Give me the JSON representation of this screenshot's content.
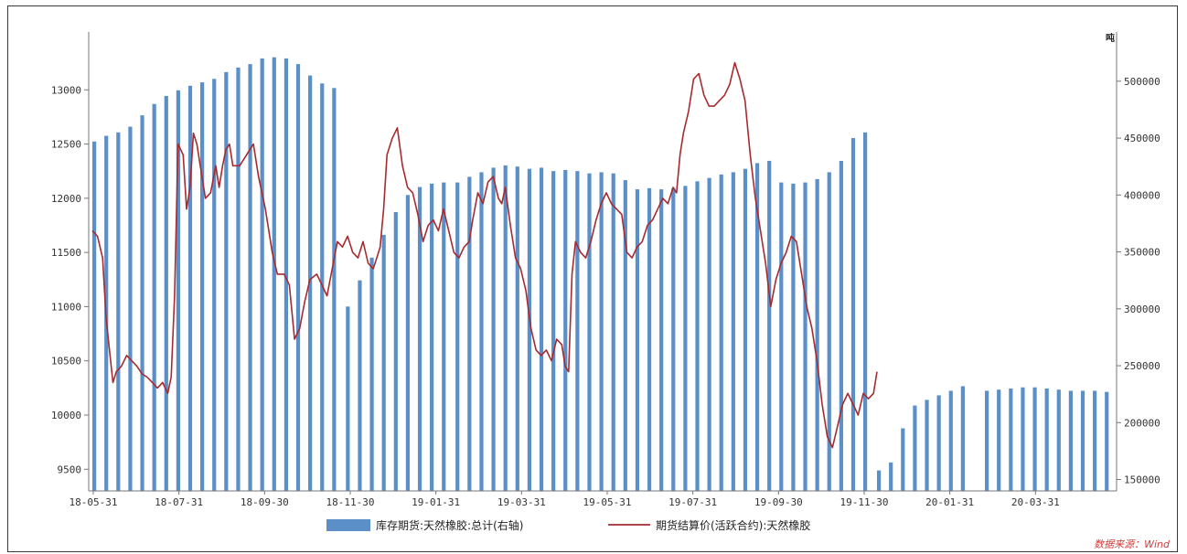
{
  "chart_data": {
    "type": "bar+line",
    "x_tick_labels": [
      "18-05-31",
      "18-07-31",
      "18-09-30",
      "18-11-30",
      "19-01-31",
      "19-03-31",
      "19-05-31",
      "19-07-31",
      "19-09-30",
      "19-11-30",
      "20-01-31",
      "20-03-31"
    ],
    "left_axis": {
      "ylim": [
        9300,
        13500
      ],
      "ticks": [
        9500,
        10000,
        10500,
        11000,
        11500,
        12000,
        12500,
        13000
      ]
    },
    "right_axis": {
      "unit": "吨",
      "ylim": [
        140000,
        540000
      ],
      "ticks": [
        150000,
        200000,
        250000,
        300000,
        350000,
        400000,
        450000,
        500000
      ]
    },
    "legend": {
      "placement": "bottom-center"
    },
    "series": [
      {
        "name": "库存期货:天然橡胶:总计(右轴)",
        "kind": "bar",
        "axis": "right",
        "color": "#5b8fc7",
        "points": [
          [
            0,
            447000
          ],
          [
            7,
            452000
          ],
          [
            14,
            455000
          ],
          [
            21,
            460000
          ],
          [
            28,
            470000
          ],
          [
            35,
            480000
          ],
          [
            42,
            487000
          ],
          [
            49,
            492000
          ],
          [
            56,
            496000
          ],
          [
            63,
            499000
          ],
          [
            70,
            502000
          ],
          [
            77,
            508000
          ],
          [
            84,
            512000
          ],
          [
            91,
            515000
          ],
          [
            98,
            520000
          ],
          [
            105,
            521000
          ],
          [
            112,
            520000
          ],
          [
            119,
            515000
          ],
          [
            126,
            505000
          ],
          [
            133,
            498000
          ],
          [
            140,
            494000
          ],
          [
            148,
            302000
          ],
          [
            155,
            325000
          ],
          [
            162,
            345000
          ],
          [
            169,
            365000
          ],
          [
            176,
            385000
          ],
          [
            183,
            400000
          ],
          [
            190,
            407000
          ],
          [
            197,
            410000
          ],
          [
            204,
            411000
          ],
          [
            212,
            411000
          ],
          [
            219,
            416000
          ],
          [
            226,
            420000
          ],
          [
            233,
            424000
          ],
          [
            240,
            426000
          ],
          [
            247,
            425000
          ],
          [
            254,
            423000
          ],
          [
            261,
            424000
          ],
          [
            268,
            421000
          ],
          [
            275,
            422000
          ],
          [
            282,
            421000
          ],
          [
            289,
            419000
          ],
          [
            296,
            420000
          ],
          [
            303,
            419000
          ],
          [
            310,
            413000
          ],
          [
            317,
            405000
          ],
          [
            324,
            406000
          ],
          [
            331,
            405000
          ],
          [
            338,
            406000
          ],
          [
            345,
            408000
          ],
          [
            352,
            412000
          ],
          [
            359,
            415000
          ],
          [
            366,
            418000
          ],
          [
            373,
            420000
          ],
          [
            380,
            423000
          ],
          [
            387,
            428000
          ],
          [
            394,
            430000
          ],
          [
            401,
            411000
          ],
          [
            408,
            410000
          ],
          [
            415,
            411000
          ],
          [
            422,
            414000
          ],
          [
            429,
            420000
          ],
          [
            436,
            430000
          ],
          [
            443,
            450000
          ],
          [
            450,
            455000
          ],
          [
            458,
            158000
          ],
          [
            465,
            165000
          ],
          [
            472,
            195000
          ],
          [
            479,
            215000
          ],
          [
            486,
            220000
          ],
          [
            493,
            224000
          ],
          [
            500,
            228000
          ],
          [
            507,
            232000
          ],
          [
            521,
            228000
          ],
          [
            528,
            229000
          ],
          [
            535,
            230000
          ],
          [
            542,
            231000
          ],
          [
            549,
            231000
          ],
          [
            556,
            230000
          ],
          [
            563,
            229000
          ],
          [
            570,
            228000
          ],
          [
            577,
            228000
          ],
          [
            584,
            228000
          ],
          [
            591,
            227000
          ]
        ]
      },
      {
        "name": "期货结算价(活跃合约):天然橡胶",
        "kind": "line",
        "axis": "left",
        "color": "#a62b30",
        "points": [
          [
            0,
            11700
          ],
          [
            3,
            11650
          ],
          [
            6,
            11450
          ],
          [
            8,
            10900
          ],
          [
            10,
            10600
          ],
          [
            12,
            10300
          ],
          [
            14,
            10400
          ],
          [
            17,
            10450
          ],
          [
            20,
            10550
          ],
          [
            23,
            10500
          ],
          [
            26,
            10450
          ],
          [
            29,
            10380
          ],
          [
            32,
            10350
          ],
          [
            35,
            10300
          ],
          [
            38,
            10250
          ],
          [
            41,
            10300
          ],
          [
            44,
            10200
          ],
          [
            46,
            10350
          ],
          [
            48,
            11100
          ],
          [
            50,
            12500
          ],
          [
            53,
            12400
          ],
          [
            55,
            11900
          ],
          [
            57,
            12100
          ],
          [
            59,
            12600
          ],
          [
            61,
            12500
          ],
          [
            63,
            12300
          ],
          [
            66,
            12000
          ],
          [
            69,
            12050
          ],
          [
            72,
            12300
          ],
          [
            74,
            12100
          ],
          [
            76,
            12300
          ],
          [
            78,
            12450
          ],
          [
            80,
            12500
          ],
          [
            82,
            12300
          ],
          [
            86,
            12300
          ],
          [
            90,
            12400
          ],
          [
            94,
            12500
          ],
          [
            97,
            12200
          ],
          [
            101,
            11900
          ],
          [
            105,
            11500
          ],
          [
            108,
            11300
          ],
          [
            112,
            11300
          ],
          [
            115,
            11200
          ],
          [
            118,
            10700
          ],
          [
            121,
            10800
          ],
          [
            124,
            11050
          ],
          [
            127,
            11250
          ],
          [
            131,
            11300
          ],
          [
            134,
            11200
          ],
          [
            137,
            11100
          ],
          [
            140,
            11350
          ],
          [
            143,
            11600
          ],
          [
            146,
            11550
          ],
          [
            149,
            11650
          ],
          [
            152,
            11500
          ],
          [
            155,
            11450
          ],
          [
            158,
            11600
          ],
          [
            161,
            11400
          ],
          [
            164,
            11350
          ],
          [
            166,
            11450
          ],
          [
            168,
            11550
          ],
          [
            170,
            11900
          ],
          [
            172,
            12400
          ],
          [
            175,
            12550
          ],
          [
            178,
            12650
          ],
          [
            181,
            12300
          ],
          [
            184,
            12100
          ],
          [
            187,
            12050
          ],
          [
            190,
            11850
          ],
          [
            193,
            11600
          ],
          [
            196,
            11750
          ],
          [
            199,
            11800
          ],
          [
            202,
            11700
          ],
          [
            205,
            11900
          ],
          [
            208,
            11700
          ],
          [
            211,
            11500
          ],
          [
            214,
            11450
          ],
          [
            217,
            11550
          ],
          [
            220,
            11600
          ],
          [
            222,
            11800
          ],
          [
            225,
            12050
          ],
          [
            228,
            11950
          ],
          [
            231,
            12150
          ],
          [
            234,
            12200
          ],
          [
            237,
            12000
          ],
          [
            239,
            11950
          ],
          [
            241,
            12100
          ],
          [
            244,
            11750
          ],
          [
            247,
            11450
          ],
          [
            250,
            11350
          ],
          [
            253,
            11150
          ],
          [
            256,
            10800
          ],
          [
            259,
            10600
          ],
          [
            262,
            10550
          ],
          [
            265,
            10600
          ],
          [
            268,
            10500
          ],
          [
            271,
            10700
          ],
          [
            274,
            10650
          ],
          [
            276,
            10450
          ],
          [
            278,
            10400
          ],
          [
            280,
            11300
          ],
          [
            282,
            11600
          ],
          [
            285,
            11500
          ],
          [
            288,
            11450
          ],
          [
            291,
            11600
          ],
          [
            294,
            11800
          ],
          [
            297,
            11950
          ],
          [
            300,
            12050
          ],
          [
            303,
            11950
          ],
          [
            306,
            11900
          ],
          [
            309,
            11850
          ],
          [
            312,
            11500
          ],
          [
            315,
            11450
          ],
          [
            318,
            11550
          ],
          [
            321,
            11600
          ],
          [
            324,
            11750
          ],
          [
            327,
            11800
          ],
          [
            330,
            11900
          ],
          [
            333,
            12000
          ],
          [
            336,
            11950
          ],
          [
            339,
            12100
          ],
          [
            341,
            12050
          ],
          [
            343,
            12400
          ],
          [
            345,
            12600
          ],
          [
            348,
            12800
          ],
          [
            351,
            13100
          ],
          [
            354,
            13150
          ],
          [
            357,
            12950
          ],
          [
            360,
            12850
          ],
          [
            363,
            12850
          ],
          [
            366,
            12900
          ],
          [
            369,
            12950
          ],
          [
            372,
            13050
          ],
          [
            375,
            13250
          ],
          [
            378,
            13100
          ],
          [
            381,
            12900
          ],
          [
            384,
            12400
          ],
          [
            387,
            12000
          ],
          [
            390,
            11700
          ],
          [
            393,
            11400
          ],
          [
            396,
            11000
          ],
          [
            399,
            11250
          ],
          [
            402,
            11400
          ],
          [
            405,
            11500
          ],
          [
            408,
            11650
          ],
          [
            411,
            11600
          ],
          [
            414,
            11300
          ],
          [
            417,
            11000
          ],
          [
            420,
            10800
          ],
          [
            423,
            10500
          ],
          [
            426,
            10100
          ],
          [
            429,
            9800
          ],
          [
            432,
            9700
          ],
          [
            435,
            9900
          ],
          [
            438,
            10100
          ],
          [
            441,
            10200
          ],
          [
            444,
            10100
          ],
          [
            447,
            10000
          ],
          [
            450,
            10200
          ],
          [
            453,
            10150
          ],
          [
            456,
            10200
          ],
          [
            458,
            10400
          ]
        ]
      }
    ]
  },
  "source_note": "数据来源：Wind"
}
